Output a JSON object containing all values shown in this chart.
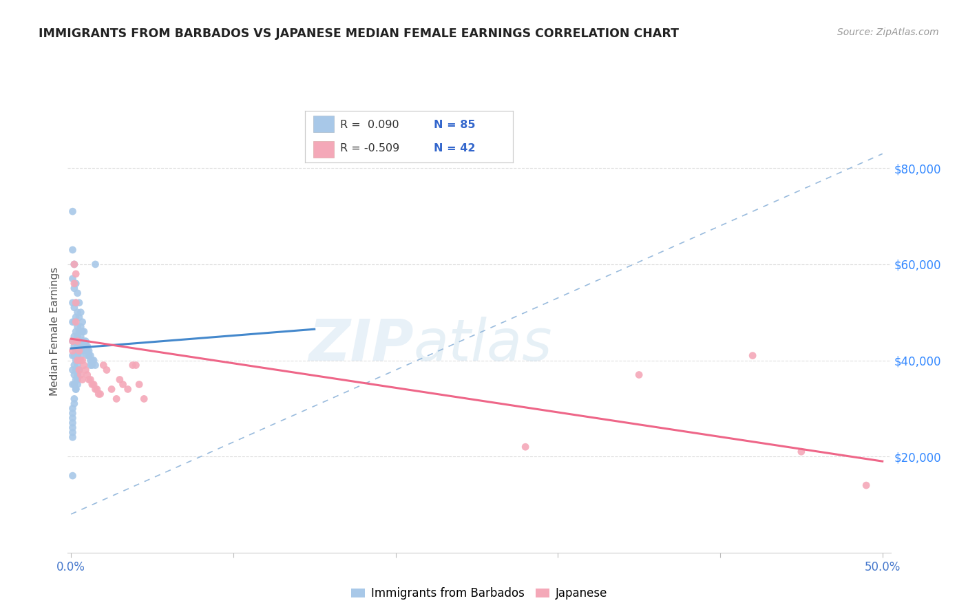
{
  "title": "IMMIGRANTS FROM BARBADOS VS JAPANESE MEDIAN FEMALE EARNINGS CORRELATION CHART",
  "source": "Source: ZipAtlas.com",
  "ylabel": "Median Female Earnings",
  "ytick_labels": [
    "$20,000",
    "$40,000",
    "$60,000",
    "$80,000"
  ],
  "ytick_values": [
    20000,
    40000,
    60000,
    80000
  ],
  "watermark_zip": "ZIP",
  "watermark_atlas": "atlas",
  "legend_r1": "R =  0.090",
  "legend_n1": "N = 85",
  "legend_r2": "R = -0.509",
  "legend_n2": "N = 42",
  "color_blue": "#a8c8e8",
  "color_pink": "#f4a8b8",
  "trendline_blue": "#4488cc",
  "trendline_pink": "#ee6688",
  "trendline_dashed": "#99bbdd",
  "xlim_min": -0.002,
  "xlim_max": 0.505,
  "ylim_min": 0,
  "ylim_max": 92000,
  "blue_x": [
    0.001,
    0.001,
    0.001,
    0.001,
    0.001,
    0.001,
    0.001,
    0.001,
    0.001,
    0.001,
    0.002,
    0.002,
    0.002,
    0.002,
    0.002,
    0.002,
    0.002,
    0.002,
    0.002,
    0.002,
    0.003,
    0.003,
    0.003,
    0.003,
    0.003,
    0.003,
    0.003,
    0.003,
    0.003,
    0.003,
    0.004,
    0.004,
    0.004,
    0.004,
    0.004,
    0.004,
    0.004,
    0.004,
    0.004,
    0.005,
    0.005,
    0.005,
    0.005,
    0.005,
    0.005,
    0.005,
    0.006,
    0.006,
    0.006,
    0.006,
    0.006,
    0.007,
    0.007,
    0.007,
    0.007,
    0.008,
    0.008,
    0.008,
    0.009,
    0.009,
    0.009,
    0.01,
    0.01,
    0.01,
    0.011,
    0.011,
    0.012,
    0.012,
    0.012,
    0.013,
    0.013,
    0.014,
    0.015,
    0.015,
    0.001,
    0.001,
    0.001,
    0.001,
    0.001,
    0.001,
    0.001,
    0.002,
    0.002,
    0.003,
    0.004
  ],
  "blue_y": [
    71000,
    63000,
    57000,
    52000,
    48000,
    44000,
    41000,
    38000,
    35000,
    16000,
    60000,
    55000,
    51000,
    48000,
    45000,
    43000,
    41000,
    39000,
    37000,
    35000,
    56000,
    52000,
    49000,
    46000,
    44000,
    42000,
    40000,
    38000,
    36000,
    34000,
    54000,
    50000,
    47000,
    45000,
    43000,
    41000,
    39000,
    37000,
    35000,
    52000,
    49000,
    46000,
    44000,
    42000,
    40000,
    38000,
    50000,
    47000,
    45000,
    43000,
    41000,
    48000,
    46000,
    44000,
    42000,
    46000,
    44000,
    43000,
    44000,
    43000,
    42000,
    43000,
    42000,
    41000,
    42000,
    41000,
    41000,
    40000,
    39000,
    40000,
    39000,
    40000,
    60000,
    39000,
    30000,
    29000,
    28000,
    27000,
    26000,
    25000,
    24000,
    32000,
    31000,
    34000,
    36000
  ],
  "pink_x": [
    0.001,
    0.001,
    0.002,
    0.002,
    0.003,
    0.003,
    0.003,
    0.004,
    0.004,
    0.005,
    0.005,
    0.006,
    0.006,
    0.007,
    0.007,
    0.008,
    0.009,
    0.01,
    0.011,
    0.012,
    0.013,
    0.014,
    0.015,
    0.016,
    0.017,
    0.018,
    0.02,
    0.022,
    0.025,
    0.028,
    0.03,
    0.032,
    0.035,
    0.038,
    0.04,
    0.042,
    0.045,
    0.28,
    0.35,
    0.42,
    0.45,
    0.49
  ],
  "pink_y": [
    44000,
    42000,
    60000,
    56000,
    58000,
    52000,
    48000,
    44000,
    40000,
    42000,
    38000,
    40000,
    37000,
    40000,
    36000,
    39000,
    38000,
    37000,
    36000,
    36000,
    35000,
    35000,
    34000,
    34000,
    33000,
    33000,
    39000,
    38000,
    34000,
    32000,
    36000,
    35000,
    34000,
    39000,
    39000,
    35000,
    32000,
    22000,
    37000,
    41000,
    21000,
    14000
  ],
  "blue_trend_x": [
    0.0,
    0.15
  ],
  "blue_trend_y": [
    42500,
    46500
  ],
  "pink_trend_x": [
    0.0,
    0.5
  ],
  "pink_trend_y": [
    44500,
    19000
  ],
  "dash_trend_x": [
    0.0,
    0.5
  ],
  "dash_trend_y": [
    8000,
    83000
  ]
}
